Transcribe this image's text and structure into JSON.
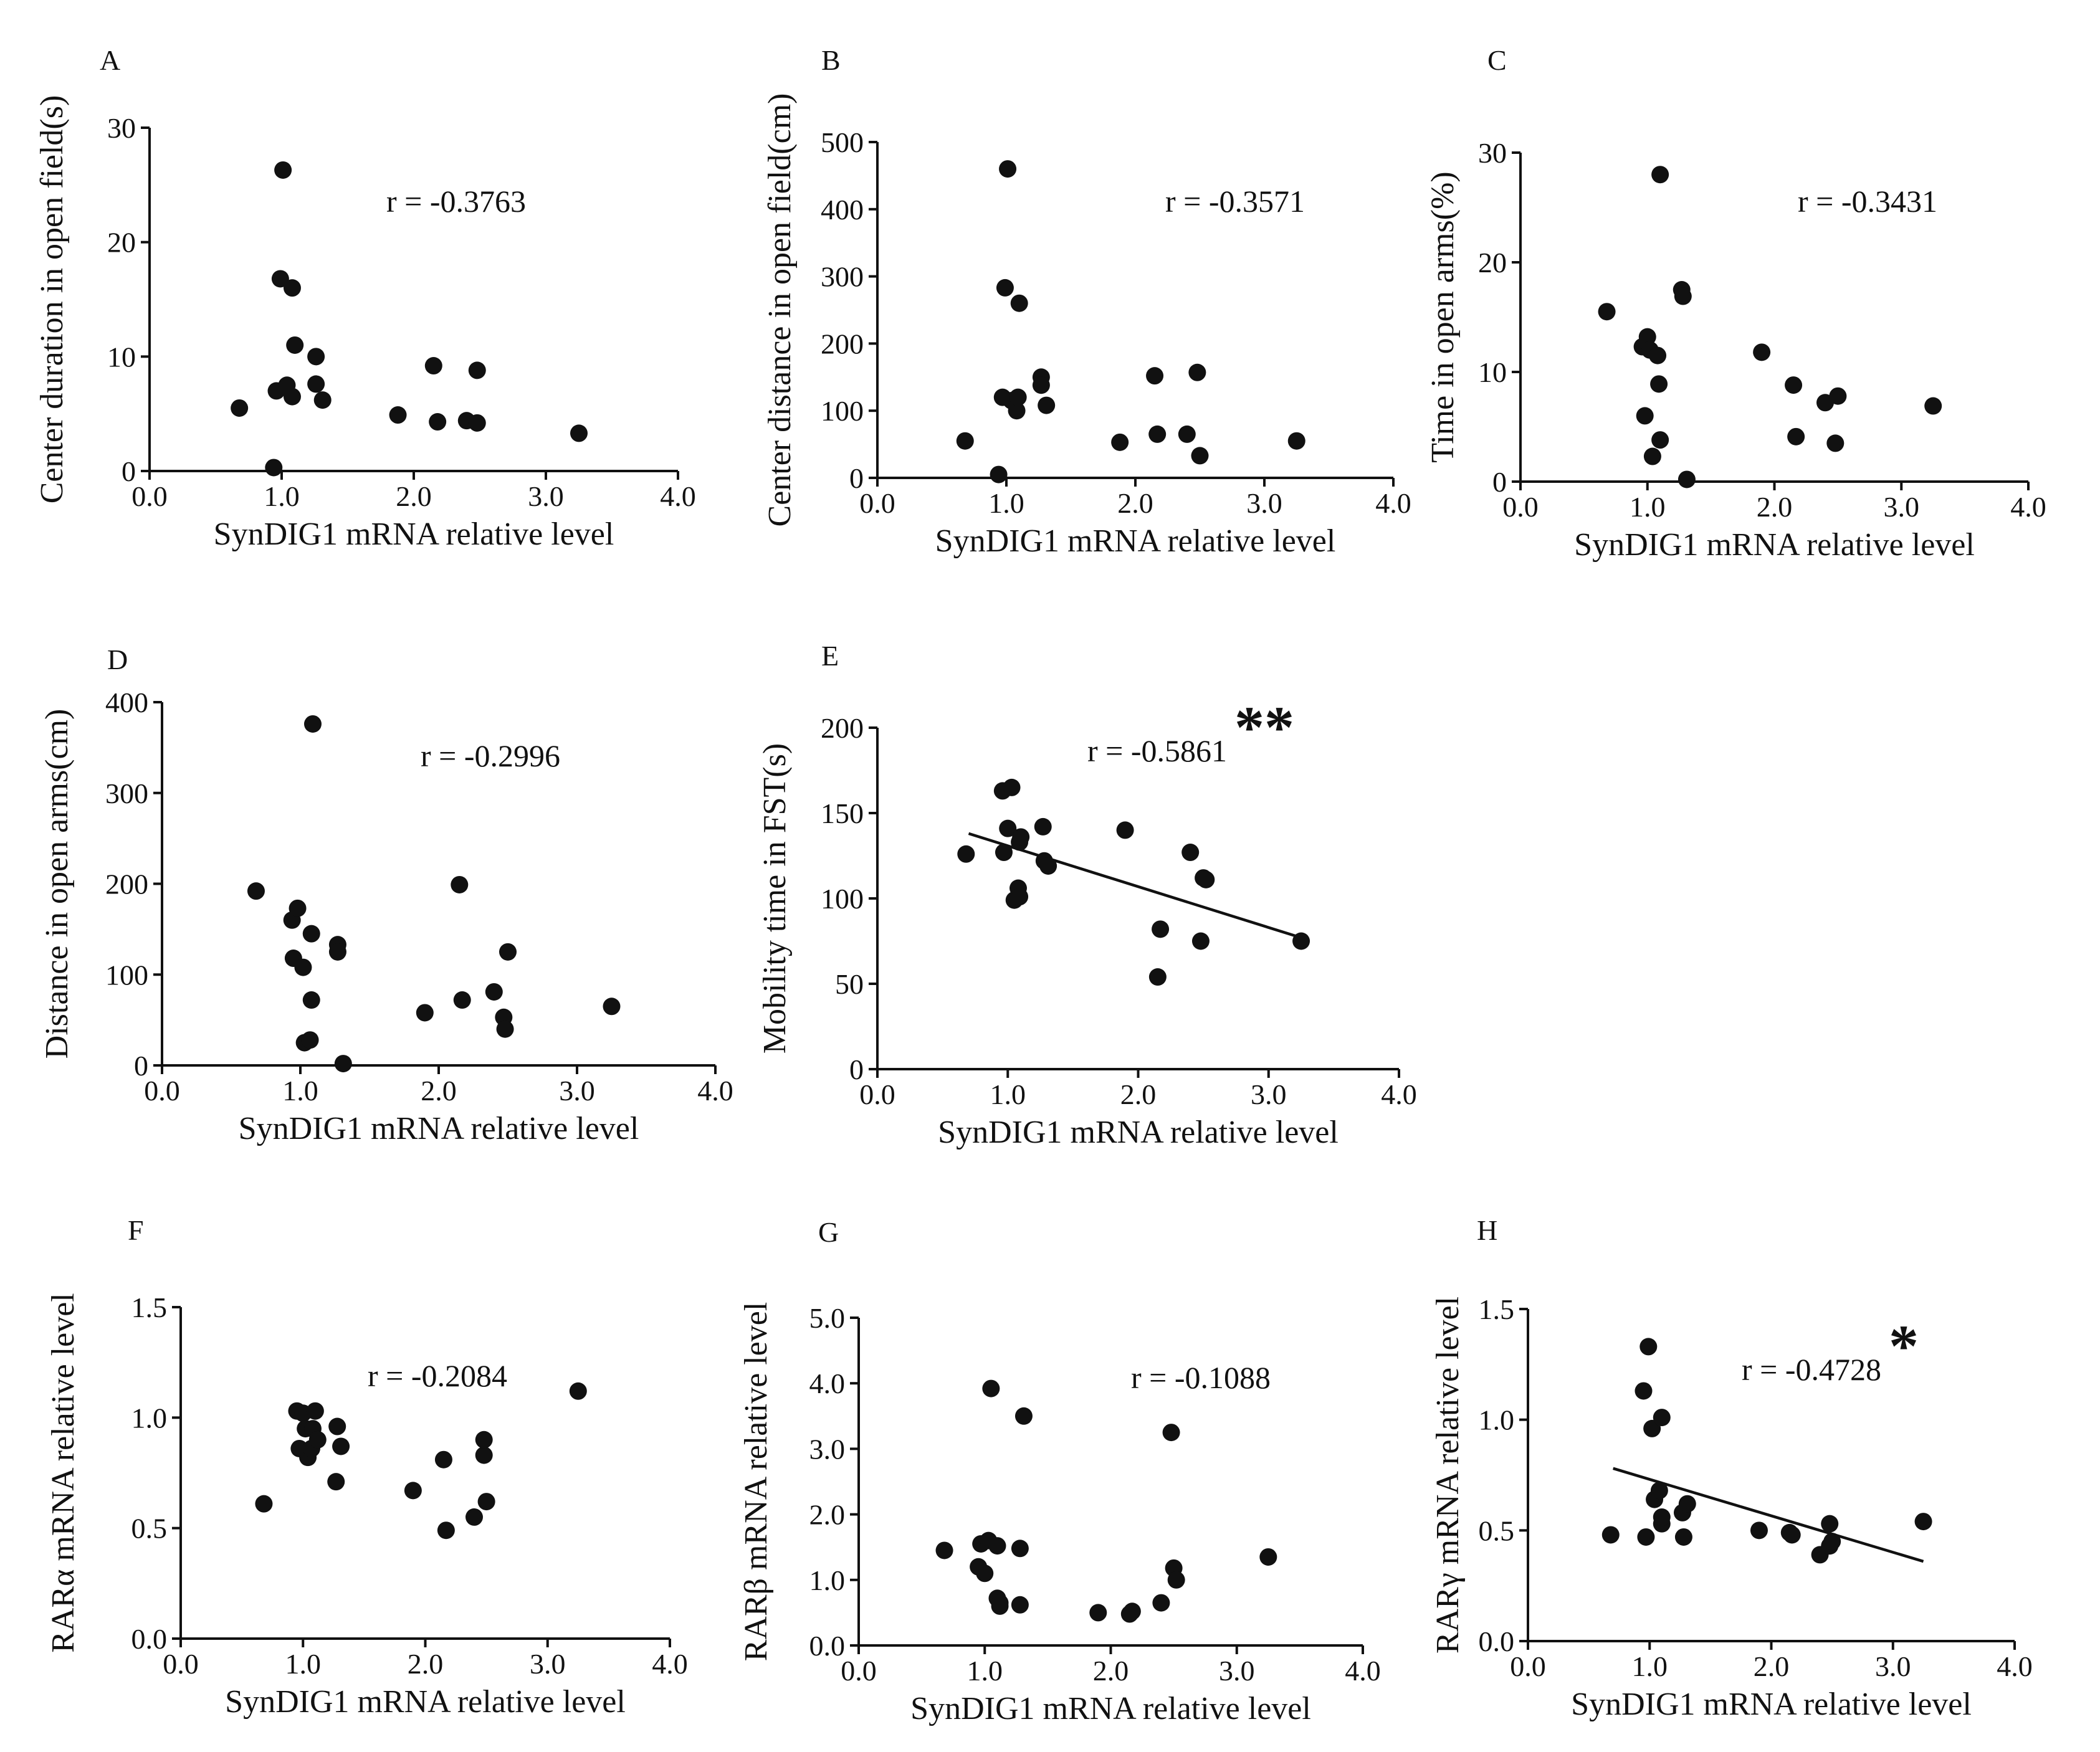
{
  "chart_data": [
    {
      "panel": "A",
      "type": "scatter",
      "xlabel": "SynDIG1 mRNA relative level",
      "ylabel": "Center duration in open field(s)",
      "xlim": [
        0,
        4
      ],
      "ylim": [
        0,
        30
      ],
      "xticks": [
        "0.0",
        "1.0",
        "2.0",
        "3.0",
        "4.0"
      ],
      "yticks": [
        "0",
        "10",
        "20",
        "30"
      ],
      "annotation": "r = -0.3763",
      "significance": "",
      "fit_line": null,
      "points": [
        [
          0.68,
          5.5
        ],
        [
          0.94,
          0.3
        ],
        [
          0.96,
          7.0
        ],
        [
          0.99,
          16.8
        ],
        [
          1.01,
          26.3
        ],
        [
          1.04,
          7.5
        ],
        [
          1.08,
          6.5
        ],
        [
          1.08,
          16.0
        ],
        [
          1.1,
          11.0
        ],
        [
          1.26,
          7.6
        ],
        [
          1.26,
          10.0
        ],
        [
          1.31,
          6.2
        ],
        [
          1.88,
          4.9
        ],
        [
          2.15,
          9.2
        ],
        [
          2.18,
          4.3
        ],
        [
          2.4,
          4.4
        ],
        [
          2.48,
          4.2
        ],
        [
          2.48,
          8.8
        ],
        [
          3.25,
          3.3
        ]
      ]
    },
    {
      "panel": "B",
      "type": "scatter",
      "xlabel": "SynDIG1 mRNA relative level",
      "ylabel": "Center distance in open field(cm)",
      "xlim": [
        0,
        4
      ],
      "ylim": [
        0,
        500
      ],
      "xticks": [
        "0.0",
        "1.0",
        "2.0",
        "3.0",
        "4.0"
      ],
      "yticks": [
        "0",
        "100",
        "200",
        "300",
        "400",
        "500"
      ],
      "annotation": "r = -0.3571",
      "significance": "",
      "fit_line": null,
      "points": [
        [
          0.68,
          55
        ],
        [
          0.94,
          5
        ],
        [
          0.97,
          120
        ],
        [
          0.99,
          283
        ],
        [
          1.01,
          460
        ],
        [
          1.04,
          115
        ],
        [
          1.08,
          100
        ],
        [
          1.09,
          120
        ],
        [
          1.1,
          260
        ],
        [
          1.27,
          150
        ],
        [
          1.27,
          138
        ],
        [
          1.31,
          108
        ],
        [
          1.88,
          53
        ],
        [
          2.15,
          152
        ],
        [
          2.17,
          65
        ],
        [
          2.4,
          65
        ],
        [
          2.48,
          157
        ],
        [
          2.5,
          33
        ],
        [
          3.25,
          55
        ]
      ]
    },
    {
      "panel": "C",
      "type": "scatter",
      "xlabel": "SynDIG1 mRNA relative level",
      "ylabel": "Time in open arms(%)",
      "xlim": [
        0,
        4
      ],
      "ylim": [
        0,
        30
      ],
      "xticks": [
        "0.0",
        "1.0",
        "2.0",
        "3.0",
        "4.0"
      ],
      "yticks": [
        "0",
        "10",
        "20",
        "30"
      ],
      "annotation": "r = -0.3431",
      "significance": "",
      "fit_line": null,
      "points": [
        [
          0.68,
          15.5
        ],
        [
          0.96,
          12.3
        ],
        [
          0.98,
          6.0
        ],
        [
          1.0,
          13.2
        ],
        [
          1.02,
          12.0
        ],
        [
          1.04,
          2.3
        ],
        [
          1.08,
          11.5
        ],
        [
          1.09,
          8.9
        ],
        [
          1.1,
          28.0
        ],
        [
          1.1,
          3.8
        ],
        [
          1.27,
          17.5
        ],
        [
          1.28,
          16.9
        ],
        [
          1.31,
          0.2
        ],
        [
          1.9,
          11.8
        ],
        [
          2.15,
          8.8
        ],
        [
          2.17,
          4.1
        ],
        [
          2.4,
          7.2
        ],
        [
          2.48,
          3.5
        ],
        [
          2.5,
          7.8
        ],
        [
          3.25,
          6.9
        ]
      ]
    },
    {
      "panel": "D",
      "type": "scatter",
      "xlabel": "SynDIG1 mRNA relative level",
      "ylabel": "Distance in open arms(cm)",
      "xlim": [
        0,
        4
      ],
      "ylim": [
        0,
        400
      ],
      "xticks": [
        "0.0",
        "1.0",
        "2.0",
        "3.0",
        "4.0"
      ],
      "yticks": [
        "0",
        "100",
        "200",
        "300",
        "400"
      ],
      "annotation": "r = -0.2996",
      "significance": "",
      "fit_line": null,
      "points": [
        [
          0.68,
          192
        ],
        [
          0.94,
          160
        ],
        [
          0.95,
          118
        ],
        [
          0.98,
          173
        ],
        [
          1.02,
          108
        ],
        [
          1.03,
          25
        ],
        [
          1.07,
          28
        ],
        [
          1.08,
          145
        ],
        [
          1.08,
          72
        ],
        [
          1.09,
          376
        ],
        [
          1.27,
          133
        ],
        [
          1.27,
          125
        ],
        [
          1.31,
          2
        ],
        [
          1.9,
          58
        ],
        [
          2.15,
          199
        ],
        [
          2.17,
          72
        ],
        [
          2.4,
          81
        ],
        [
          2.47,
          53
        ],
        [
          2.48,
          40
        ],
        [
          2.5,
          125
        ],
        [
          3.25,
          65
        ]
      ]
    },
    {
      "panel": "E",
      "type": "scatter",
      "xlabel": "SynDIG1 mRNA relative level",
      "ylabel": "Mobility time in FST(s)",
      "xlim": [
        0,
        4
      ],
      "ylim": [
        0,
        200
      ],
      "xticks": [
        "0.0",
        "1.0",
        "2.0",
        "3.0",
        "4.0"
      ],
      "yticks": [
        "0",
        "50",
        "100",
        "150",
        "200"
      ],
      "annotation": "r = -0.5861",
      "significance": "**",
      "fit_line": [
        [
          0.7,
          138
        ],
        [
          3.25,
          77
        ]
      ],
      "points": [
        [
          0.68,
          126
        ],
        [
          0.96,
          163
        ],
        [
          0.97,
          127
        ],
        [
          1.0,
          141
        ],
        [
          1.03,
          165
        ],
        [
          1.05,
          99
        ],
        [
          1.08,
          106
        ],
        [
          1.09,
          101
        ],
        [
          1.09,
          133
        ],
        [
          1.1,
          136
        ],
        [
          1.27,
          142
        ],
        [
          1.28,
          122
        ],
        [
          1.31,
          119
        ],
        [
          1.9,
          140
        ],
        [
          2.15,
          54
        ],
        [
          2.17,
          82
        ],
        [
          2.4,
          127
        ],
        [
          2.48,
          75
        ],
        [
          2.5,
          112
        ],
        [
          2.52,
          111
        ],
        [
          3.25,
          75
        ]
      ]
    },
    {
      "panel": "F",
      "type": "scatter",
      "xlabel": "SynDIG1 mRNA relative level",
      "ylabel": "RARα mRNA relative level",
      "xlim": [
        0,
        4
      ],
      "ylim": [
        0,
        1.5
      ],
      "xticks": [
        "0.0",
        "1.0",
        "2.0",
        "3.0",
        "4.0"
      ],
      "yticks": [
        "0.0",
        "0.5",
        "1.0",
        "1.5"
      ],
      "annotation": "r = -0.2084",
      "significance": "",
      "fit_line": null,
      "points": [
        [
          0.68,
          0.61
        ],
        [
          0.95,
          1.03
        ],
        [
          0.97,
          0.86
        ],
        [
          1.0,
          1.02
        ],
        [
          1.02,
          0.95
        ],
        [
          1.04,
          0.82
        ],
        [
          1.07,
          0.86
        ],
        [
          1.08,
          0.95
        ],
        [
          1.1,
          1.03
        ],
        [
          1.12,
          0.9
        ],
        [
          1.27,
          0.71
        ],
        [
          1.28,
          0.96
        ],
        [
          1.31,
          0.87
        ],
        [
          1.9,
          0.67
        ],
        [
          2.15,
          0.81
        ],
        [
          2.17,
          0.49
        ],
        [
          2.4,
          0.55
        ],
        [
          2.48,
          0.83
        ],
        [
          2.48,
          0.9
        ],
        [
          2.5,
          0.62
        ],
        [
          3.25,
          1.12
        ]
      ]
    },
    {
      "panel": "G",
      "type": "scatter",
      "xlabel": "SynDIG1 mRNA relative level",
      "ylabel": "RARβ mRNA relative level",
      "xlim": [
        0,
        4
      ],
      "ylim": [
        0,
        5
      ],
      "xticks": [
        "0.0",
        "1.0",
        "2.0",
        "3.0",
        "4.0"
      ],
      "yticks": [
        "0.0",
        "1.0",
        "2.0",
        "3.0",
        "4.0",
        "5.0"
      ],
      "annotation": "r = -0.1088",
      "significance": "",
      "fit_line": null,
      "points": [
        [
          0.68,
          1.45
        ],
        [
          0.95,
          1.2
        ],
        [
          0.97,
          1.55
        ],
        [
          1.0,
          1.1
        ],
        [
          1.03,
          1.6
        ],
        [
          1.05,
          3.92
        ],
        [
          1.1,
          1.52
        ],
        [
          1.1,
          0.72
        ],
        [
          1.12,
          0.6
        ],
        [
          1.12,
          0.65
        ],
        [
          1.28,
          1.48
        ],
        [
          1.28,
          0.62
        ],
        [
          1.31,
          3.5
        ],
        [
          1.9,
          0.5
        ],
        [
          2.15,
          0.48
        ],
        [
          2.17,
          0.52
        ],
        [
          2.4,
          0.65
        ],
        [
          2.48,
          3.25
        ],
        [
          2.5,
          1.18
        ],
        [
          2.52,
          1.0
        ],
        [
          3.25,
          1.35
        ]
      ]
    },
    {
      "panel": "H",
      "type": "scatter",
      "xlabel": "SynDIG1 mRNA relative level",
      "ylabel": "RARγ mRNA relative level",
      "xlim": [
        0,
        4
      ],
      "ylim": [
        0,
        1.5
      ],
      "xticks": [
        "0.0",
        "1.0",
        "2.0",
        "3.0",
        "4.0"
      ],
      "yticks": [
        "0.0",
        "0.5",
        "1.0",
        "1.5"
      ],
      "annotation": "r = -0.4728",
      "significance": "*",
      "fit_line": [
        [
          0.7,
          0.78
        ],
        [
          3.25,
          0.36
        ]
      ],
      "points": [
        [
          0.68,
          0.48
        ],
        [
          0.95,
          1.13
        ],
        [
          0.97,
          0.47
        ],
        [
          0.99,
          1.33
        ],
        [
          1.02,
          0.96
        ],
        [
          1.04,
          0.64
        ],
        [
          1.08,
          0.68
        ],
        [
          1.1,
          1.01
        ],
        [
          1.1,
          0.53
        ],
        [
          1.1,
          0.56
        ],
        [
          1.27,
          0.58
        ],
        [
          1.28,
          0.47
        ],
        [
          1.31,
          0.62
        ],
        [
          1.9,
          0.5
        ],
        [
          2.15,
          0.49
        ],
        [
          2.17,
          0.48
        ],
        [
          2.4,
          0.39
        ],
        [
          2.48,
          0.43
        ],
        [
          2.48,
          0.53
        ],
        [
          2.5,
          0.45
        ],
        [
          3.25,
          0.54
        ]
      ]
    }
  ]
}
